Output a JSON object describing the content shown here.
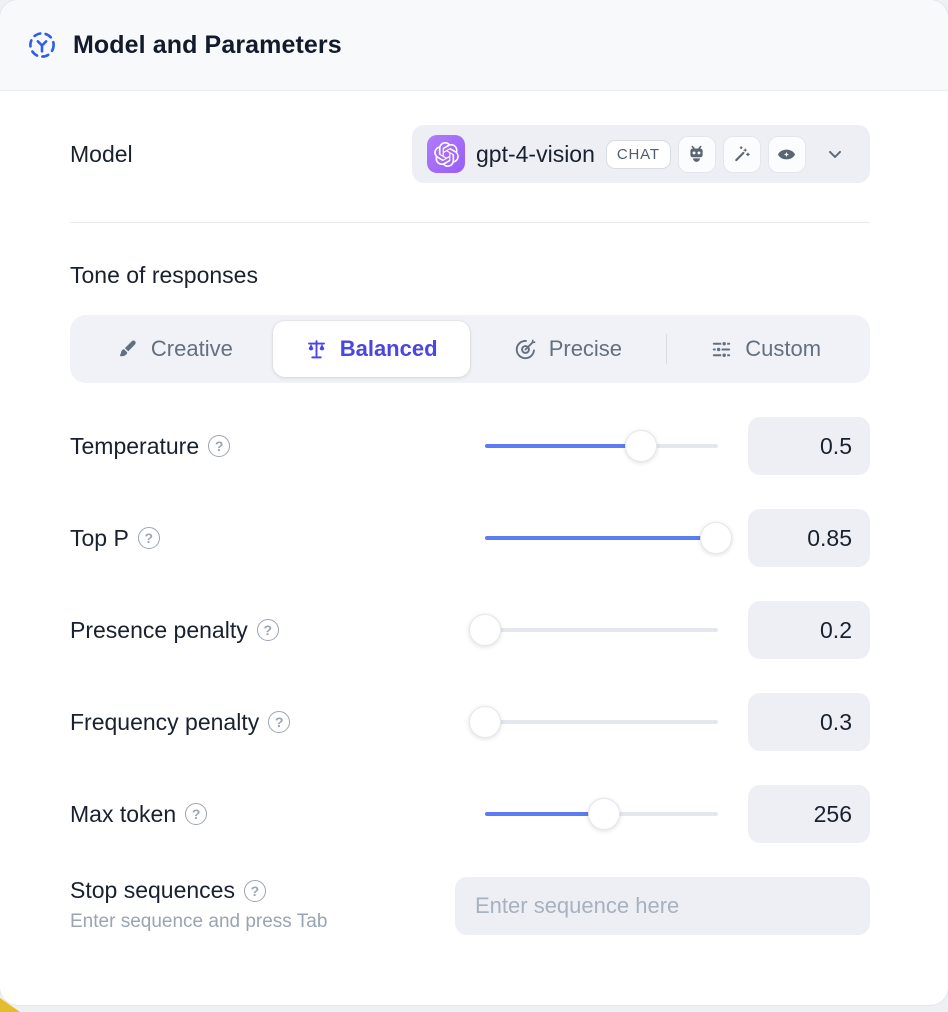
{
  "header": {
    "title": "Model and Parameters"
  },
  "model_row": {
    "label": "Model",
    "selected_model": "gpt-4-vision",
    "badge": "CHAT",
    "capability_icons": [
      "robot-icon",
      "magic-wand-icon",
      "vision-eye-icon"
    ]
  },
  "tone": {
    "label": "Tone of responses",
    "tabs": [
      {
        "label": "Creative",
        "icon": "paintbrush-icon",
        "active": false
      },
      {
        "label": "Balanced",
        "icon": "balance-scale-icon",
        "active": true
      },
      {
        "label": "Precise",
        "icon": "target-icon",
        "active": false
      },
      {
        "label": "Custom",
        "icon": "sliders-icon",
        "active": false
      }
    ]
  },
  "parameters": [
    {
      "label": "Temperature",
      "value": "0.5",
      "percent": 67
    },
    {
      "label": "Top P",
      "value": "0.85",
      "percent": 99
    },
    {
      "label": "Presence penalty",
      "value": "0.2",
      "percent": 0
    },
    {
      "label": "Frequency penalty",
      "value": "0.3",
      "percent": 0
    },
    {
      "label": "Max token",
      "value": "256",
      "percent": 51
    }
  ],
  "stop_sequences": {
    "label": "Stop sequences",
    "hint": "Enter sequence and press Tab",
    "placeholder": "Enter sequence here"
  },
  "ui": {
    "help_glyph": "?"
  },
  "colors": {
    "accent_indigo": "#4a46e2",
    "slider_blue": "#5c7cf2",
    "logo_purple": "#9a5df6",
    "header_icon_blue": "#2f5fe8",
    "corner_yellow": "#e3bd2e",
    "field_gray": "#edeff4"
  }
}
